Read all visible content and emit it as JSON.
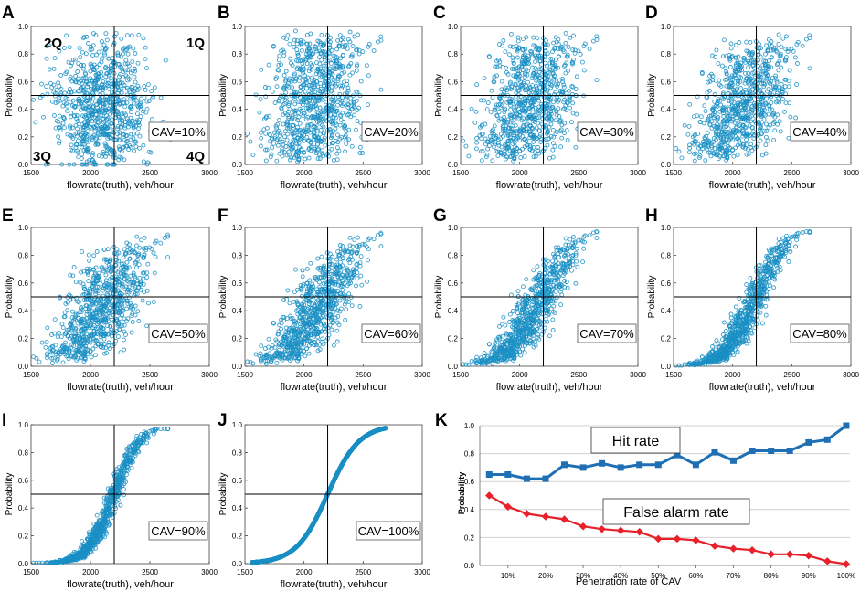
{
  "figure": {
    "panel_letters": [
      "A",
      "B",
      "C",
      "D",
      "E",
      "F",
      "G",
      "H",
      "I",
      "J",
      "K"
    ],
    "colors": {
      "point": "#1a8fc4",
      "hit": "#1f6fb5",
      "false_alarm": "#e8202a",
      "axis": "#000000",
      "grid": "#d0d0d0"
    }
  },
  "chart_data": [
    {
      "panel": "A",
      "type": "scatter",
      "cav_label": "CAV=10%",
      "cav": 0.1,
      "title": "",
      "xlabel": "flowrate(truth), veh/hour",
      "ylabel": "Probability",
      "xlim": [
        1500,
        3000
      ],
      "ylim": [
        0,
        1
      ],
      "xticks": [
        "1500",
        "2000",
        "2500",
        "3000"
      ],
      "yticks": [
        "0.0",
        "0.2",
        "0.4",
        "0.6",
        "0.8",
        "1.0"
      ],
      "ref_lines": {
        "x": 2200,
        "y": 0.5
      },
      "quadrant_labels": [
        "2Q",
        "1Q",
        "3Q",
        "4Q"
      ]
    },
    {
      "panel": "B",
      "type": "scatter",
      "cav_label": "CAV=20%",
      "cav": 0.2,
      "xlabel": "flowrate(truth), veh/hour",
      "ylabel": "Probability",
      "xlim": [
        1500,
        3000
      ],
      "ylim": [
        0,
        1
      ],
      "xticks": [
        "1500",
        "2000",
        "2500",
        "3000"
      ],
      "yticks": [
        "0.0",
        "0.2",
        "0.4",
        "0.6",
        "0.8",
        "1.0"
      ],
      "ref_lines": {
        "x": 2200,
        "y": 0.5
      }
    },
    {
      "panel": "C",
      "type": "scatter",
      "cav_label": "CAV=30%",
      "cav": 0.3,
      "xlabel": "flowrate(truth), veh/hour",
      "ylabel": "Probability",
      "xlim": [
        1500,
        3000
      ],
      "ylim": [
        0,
        1
      ],
      "xticks": [
        "1500",
        "2000",
        "2500",
        "3000"
      ],
      "yticks": [
        "0.0",
        "0.2",
        "0.4",
        "0.6",
        "0.8",
        "1.0"
      ],
      "ref_lines": {
        "x": 2200,
        "y": 0.5
      }
    },
    {
      "panel": "D",
      "type": "scatter",
      "cav_label": "CAV=40%",
      "cav": 0.4,
      "xlabel": "flowrate(truth), veh/hour",
      "ylabel": "Probability",
      "xlim": [
        1500,
        3000
      ],
      "ylim": [
        0,
        1
      ],
      "xticks": [
        "1500",
        "2000",
        "2500",
        "3000"
      ],
      "yticks": [
        "0.0",
        "0.2",
        "0.4",
        "0.6",
        "0.8",
        "1.0"
      ],
      "ref_lines": {
        "x": 2200,
        "y": 0.5
      }
    },
    {
      "panel": "E",
      "type": "scatter",
      "cav_label": "CAV=50%",
      "cav": 0.5,
      "xlabel": "flowrate(truth), veh/hour",
      "ylabel": "Probability",
      "xlim": [
        1500,
        3000
      ],
      "ylim": [
        0,
        1
      ],
      "xticks": [
        "1500",
        "2000",
        "2500",
        "3000"
      ],
      "yticks": [
        "0.0",
        "0.2",
        "0.4",
        "0.6",
        "0.8",
        "1.0"
      ],
      "ref_lines": {
        "x": 2200,
        "y": 0.5
      }
    },
    {
      "panel": "F",
      "type": "scatter",
      "cav_label": "CAV=60%",
      "cav": 0.6,
      "xlabel": "flowrate(truth), veh/hour",
      "ylabel": "Probability",
      "xlim": [
        1500,
        3000
      ],
      "ylim": [
        0,
        1
      ],
      "xticks": [
        "1500",
        "2000",
        "2500",
        "3000"
      ],
      "yticks": [
        "0.0",
        "0.2",
        "0.4",
        "0.6",
        "0.8",
        "1.0"
      ],
      "ref_lines": {
        "x": 2200,
        "y": 0.5
      }
    },
    {
      "panel": "G",
      "type": "scatter",
      "cav_label": "CAV=70%",
      "cav": 0.7,
      "xlabel": "flowrate(truth), veh/hour",
      "ylabel": "Probability",
      "xlim": [
        1500,
        3000
      ],
      "ylim": [
        0,
        1
      ],
      "xticks": [
        "1500",
        "2000",
        "2500",
        "3000"
      ],
      "yticks": [
        "0.0",
        "0.2",
        "0.4",
        "0.6",
        "0.8",
        "1.0"
      ],
      "ref_lines": {
        "x": 2200,
        "y": 0.5
      }
    },
    {
      "panel": "H",
      "type": "scatter",
      "cav_label": "CAV=80%",
      "cav": 0.8,
      "xlabel": "flowrate(truth), veh/hour",
      "ylabel": "Probability",
      "xlim": [
        1500,
        3000
      ],
      "ylim": [
        0,
        1
      ],
      "xticks": [
        "1500",
        "2000",
        "2500",
        "3000"
      ],
      "yticks": [
        "0.0",
        "0.2",
        "0.4",
        "0.6",
        "0.8",
        "1.0"
      ],
      "ref_lines": {
        "x": 2200,
        "y": 0.5
      }
    },
    {
      "panel": "I",
      "type": "scatter",
      "cav_label": "CAV=90%",
      "cav": 0.9,
      "xlabel": "flowrate(truth), veh/hour",
      "ylabel": "Probability",
      "xlim": [
        1500,
        3000
      ],
      "ylim": [
        0,
        1
      ],
      "xticks": [
        "1500",
        "2000",
        "2500",
        "3000"
      ],
      "yticks": [
        "0.0",
        "0.2",
        "0.4",
        "0.6",
        "0.8",
        "1.0"
      ],
      "ref_lines": {
        "x": 2200,
        "y": 0.5
      }
    },
    {
      "panel": "J",
      "type": "scatter",
      "cav_label": "CAV=100%",
      "cav": 1.0,
      "xlabel": "flowrate(truth), veh/hour",
      "ylabel": "Probability",
      "xlim": [
        1500,
        3000
      ],
      "ylim": [
        0,
        1
      ],
      "xticks": [
        "1500",
        "2000",
        "2500",
        "3000"
      ],
      "yticks": [
        "0.0",
        "0.2",
        "0.4",
        "0.6",
        "0.8",
        "1.0"
      ],
      "ref_lines": {
        "x": 2200,
        "y": 0.5
      }
    },
    {
      "panel": "K",
      "type": "line",
      "xlabel": "Penetration rate of CAV",
      "ylabel": "Probability",
      "ylim": [
        0,
        1
      ],
      "grid": true,
      "x": [
        5,
        10,
        15,
        20,
        25,
        30,
        35,
        40,
        45,
        50,
        55,
        60,
        65,
        70,
        75,
        80,
        85,
        90,
        95,
        100
      ],
      "xticks": [
        "10%",
        "20%",
        "30%",
        "40%",
        "50%",
        "60%",
        "70%",
        "80%",
        "90%",
        "100%"
      ],
      "yticks": [
        "0.0",
        "0.2",
        "0.4",
        "0.6",
        "0.8",
        "1.0"
      ],
      "series": [
        {
          "name": "Hit rate",
          "values": [
            0.65,
            0.65,
            0.62,
            0.62,
            0.72,
            0.7,
            0.73,
            0.7,
            0.72,
            0.72,
            0.79,
            0.72,
            0.81,
            0.75,
            0.82,
            0.82,
            0.82,
            0.88,
            0.9,
            1.0
          ]
        },
        {
          "name": "False alarm rate",
          "values": [
            0.5,
            0.42,
            0.37,
            0.35,
            0.33,
            0.28,
            0.26,
            0.25,
            0.24,
            0.19,
            0.19,
            0.18,
            0.14,
            0.12,
            0.11,
            0.08,
            0.08,
            0.07,
            0.03,
            0.01
          ]
        }
      ]
    }
  ]
}
